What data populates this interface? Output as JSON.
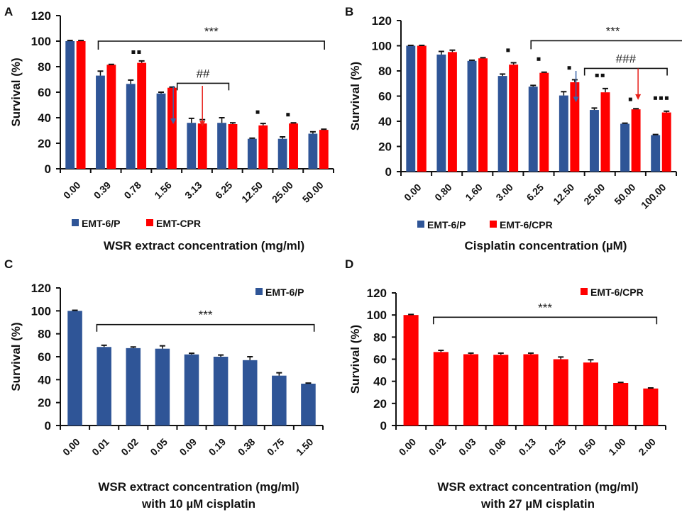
{
  "colors": {
    "blue": "#2F5597",
    "red": "#FF0000",
    "axis": "#111111",
    "blueArrow": "#3A64A8",
    "redArrow": "#E8201A"
  },
  "chart_data": [
    {
      "panel": "A",
      "type": "bar",
      "title": "",
      "xlabel": "WSR extract concentration (mg/ml)",
      "xlabel2": "",
      "ylabel": "Survival (%)",
      "ylim": [
        0,
        120
      ],
      "yticks": [
        0,
        20,
        40,
        60,
        80,
        100,
        120
      ],
      "categories": [
        "0.00",
        "0.39",
        "0.78",
        "1.56",
        "3.13",
        "6.25",
        "12.50",
        "25.00",
        "50.00"
      ],
      "legend_position": "bottom",
      "series": [
        {
          "name": "EMT-6/P",
          "color": "#2F5597",
          "values": [
            100,
            73,
            66.5,
            59,
            36,
            36,
            23.5,
            23.5,
            27.5
          ],
          "errors": [
            0.5,
            3.5,
            3,
            1,
            3.5,
            4,
            0.5,
            1.5,
            1.5
          ]
        },
        {
          "name": "EMT-CPR",
          "color": "#FF0000",
          "values": [
            100,
            81.5,
            83,
            63.5,
            35.5,
            35,
            34,
            35.5,
            30.5
          ],
          "errors": [
            0.5,
            0.3,
            1.5,
            0.5,
            3,
            1,
            1.5,
            0.5,
            0.5
          ]
        }
      ],
      "annotations": [
        {
          "type": "bracket",
          "label": "***",
          "from": 1,
          "to": 8,
          "level": 100
        },
        {
          "type": "bracket",
          "label": "##",
          "from": 3.6,
          "to": 4.85,
          "level": 67,
          "arrows": [
            {
              "at": 3.72,
              "color": "blue",
              "top": 65,
              "bottom": 35
            },
            {
              "at": 4.68,
              "color": "red",
              "top": 65,
              "bottom": 33
            }
          ]
        },
        {
          "type": "markers",
          "category": 2,
          "count": 2,
          "level": 90
        },
        {
          "type": "markers",
          "category": 6,
          "count": 1,
          "level": 43
        },
        {
          "type": "markers",
          "category": 7,
          "count": 1,
          "level": 41
        }
      ]
    },
    {
      "panel": "B",
      "type": "bar",
      "title": "",
      "xlabel": "Cisplatin concentration (µM)",
      "xlabel2": "",
      "ylabel": "Survival (%)",
      "ylim": [
        0,
        120
      ],
      "yticks": [
        0,
        20,
        40,
        60,
        80,
        100,
        120
      ],
      "categories": [
        "0.00",
        "0.80",
        "1.60",
        "3.00",
        "6.25",
        "12.50",
        "25.00",
        "50.00",
        "100.00"
      ],
      "legend_position": "bottom",
      "series": [
        {
          "name": "EMT-6/P",
          "color": "#2F5597",
          "values": [
            100,
            93,
            88,
            76,
            67.5,
            60.5,
            49,
            38,
            29
          ],
          "errors": [
            0.3,
            2.5,
            0.5,
            1.5,
            1,
            3,
            1.5,
            0.5,
            0.5
          ]
        },
        {
          "name": "EMT-6/CPR",
          "color": "#FF0000",
          "values": [
            100,
            95,
            90,
            85,
            78.5,
            71,
            63,
            49.5,
            47
          ],
          "errors": [
            0.3,
            1.5,
            0.5,
            1.5,
            0.5,
            2,
            3,
            0.5,
            1
          ]
        }
      ],
      "annotations": [
        {
          "type": "bracket",
          "label": "***",
          "from": 4,
          "to": 8.9,
          "level": 104
        },
        {
          "type": "bracket",
          "label": "###",
          "from": 5.75,
          "to": 8.0,
          "level": 82,
          "arrows": [
            {
              "at": 5.72,
              "color": "blue",
              "top": 80,
              "bottom": 55
            },
            {
              "at": 7.75,
              "color": "red",
              "top": 82,
              "bottom": 57
            }
          ]
        },
        {
          "type": "markers",
          "category": 3,
          "count": 1,
          "level": 95
        },
        {
          "type": "markers",
          "category": 4,
          "count": 1,
          "level": 88
        },
        {
          "type": "markers",
          "category": 5,
          "count": 1,
          "level": 81
        },
        {
          "type": "markers",
          "category": 6,
          "count": 2,
          "level": 75
        },
        {
          "type": "markers",
          "category": 7,
          "count": 1,
          "level": 56
        },
        {
          "type": "markers",
          "category": 8,
          "count": 3,
          "level": 57
        }
      ]
    },
    {
      "panel": "C",
      "type": "bar",
      "title": "",
      "xlabel": "WSR extract concentration (mg/ml)",
      "xlabel2": "with 10 µM cisplatin",
      "ylabel": "Survival (%)",
      "ylim": [
        0,
        120
      ],
      "yticks": [
        0,
        20,
        40,
        60,
        80,
        100,
        120
      ],
      "categories": [
        "0.00",
        "0.01",
        "0.02",
        "0.05",
        "0.09",
        "0.19",
        "0.38",
        "0.75",
        "1.50"
      ],
      "legend_position": "top-right",
      "series": [
        {
          "name": "EMT-6/P",
          "color": "#2F5597",
          "values": [
            100,
            68.5,
            67.5,
            67,
            62,
            60,
            57,
            43.5,
            36.5
          ],
          "errors": [
            0.5,
            1.5,
            1,
            2.5,
            1,
            1.5,
            3,
            2.5,
            0.5
          ]
        }
      ],
      "annotations": [
        {
          "type": "bracket",
          "label": "***",
          "from": 1,
          "to": 8,
          "level": 88
        }
      ]
    },
    {
      "panel": "D",
      "type": "bar",
      "title": "",
      "xlabel": "WSR extract concentration (mg/ml)",
      "xlabel2": "with 27 µM cisplatin",
      "ylabel": "Survival (%)",
      "ylim": [
        0,
        120
      ],
      "yticks": [
        0,
        20,
        40,
        60,
        80,
        100,
        120
      ],
      "categories": [
        "0.00",
        "0.02",
        "0.03",
        "0.06",
        "0.13",
        "0.25",
        "0.50",
        "1.00",
        "2.00"
      ],
      "legend_position": "top-right",
      "series": [
        {
          "name": "EMT-6/CPR",
          "color": "#FF0000",
          "values": [
            100,
            66.5,
            64.5,
            64,
            64.5,
            60,
            57,
            38.5,
            33.5
          ],
          "errors": [
            0.5,
            1.5,
            1,
            1.5,
            1,
            2,
            2.5,
            0.5,
            0.5
          ]
        }
      ],
      "annotations": [
        {
          "type": "bracket",
          "label": "***",
          "from": 1,
          "to": 8,
          "level": 98
        }
      ]
    }
  ]
}
